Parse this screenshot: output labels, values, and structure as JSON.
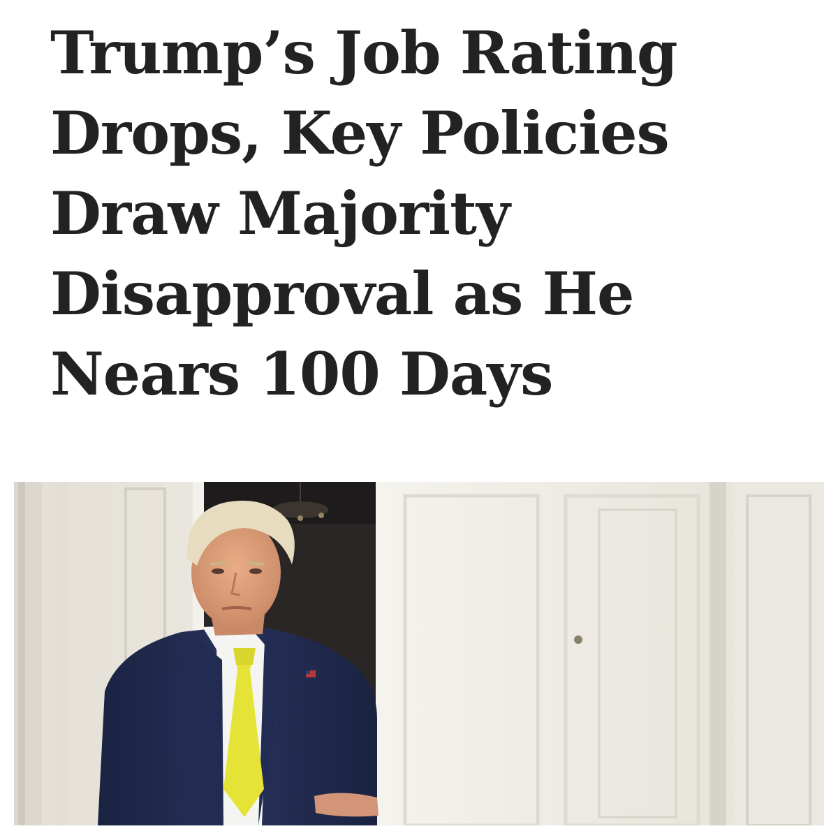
{
  "article": {
    "headline_lines": [
      "Trump’s Job Rating",
      "Drops, Key Policies",
      "Draw Majority",
      "Disapproval as He",
      "Nears 100 Days"
    ]
  },
  "photo": {
    "subject": "man-in-doorway",
    "colors": {
      "wall": "#ece9e2",
      "suit": "#202a4a",
      "tie": "#e6e337",
      "hair": "#e8dcc0",
      "skin": "#e0a07a"
    }
  }
}
